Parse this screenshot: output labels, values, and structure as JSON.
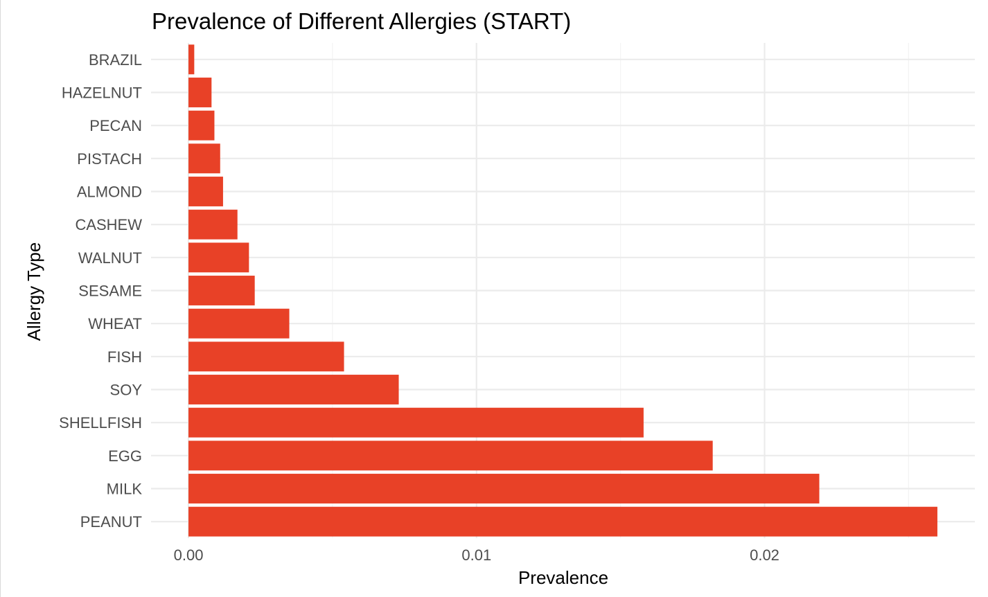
{
  "colors": {
    "bar": "#e84127",
    "grid_major": "#ebebeb",
    "grid_minor": "#f3f3f3",
    "tick_text": "#4d4d4d",
    "background": "#ffffff"
  },
  "chart_data": {
    "type": "bar",
    "orientation": "horizontal",
    "title": "Prevalence of Different Allergies (START)",
    "xlabel": "Prevalence",
    "ylabel": "Allergy Type",
    "categories": [
      "PEANUT",
      "MILK",
      "EGG",
      "SHELLFISH",
      "SOY",
      "FISH",
      "WHEAT",
      "SESAME",
      "WALNUT",
      "CASHEW",
      "ALMOND",
      "PISTACH",
      "PECAN",
      "HAZELNUT",
      "BRAZIL"
    ],
    "values": [
      0.026,
      0.0219,
      0.0182,
      0.0158,
      0.0073,
      0.0054,
      0.0035,
      0.0023,
      0.0021,
      0.0017,
      0.0012,
      0.0011,
      0.0009,
      0.0008,
      0.0002
    ],
    "xlim": [
      -0.0013,
      0.0273
    ],
    "x_ticks": [
      0.0,
      0.01,
      0.02
    ],
    "x_tick_labels": [
      "0.00",
      "0.01",
      "0.02"
    ],
    "grid": true,
    "legend": "none"
  }
}
